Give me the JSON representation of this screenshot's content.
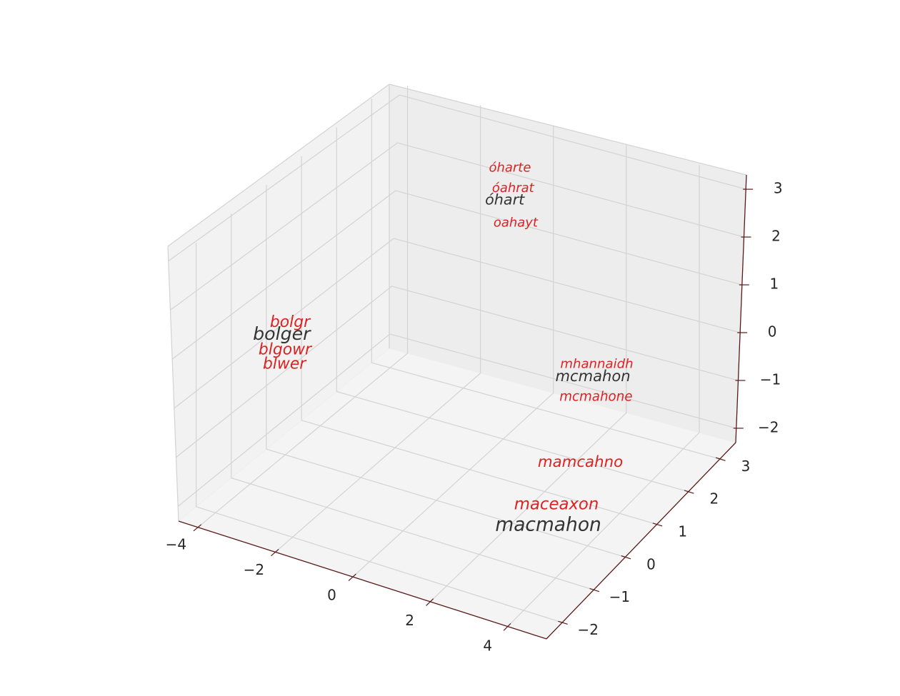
{
  "chart_data": {
    "type": "scatter",
    "projection": "3d",
    "title": "",
    "xlabel": "",
    "ylabel": "",
    "zlabel": "",
    "grid": true,
    "xlim": [
      -4.5,
      5
    ],
    "ylim": [
      -2.5,
      3.5
    ],
    "zlim": [
      -2.3,
      3.3
    ],
    "xticks": [
      "−4",
      "−2",
      "0",
      "2",
      "4"
    ],
    "yticks": [
      "−2",
      "−1",
      "0",
      "1",
      "2",
      "3"
    ],
    "zticks": [
      "−2",
      "−1",
      "0",
      "1",
      "2",
      "3"
    ],
    "colors": {
      "target": "#333333",
      "variant": "#dd2222"
    },
    "labels": [
      {
        "text": "óharte",
        "group": "variant",
        "x": -1.0,
        "y": 2.8,
        "z": 2.8
      },
      {
        "text": "óahrat",
        "group": "variant",
        "x": -0.9,
        "y": 2.8,
        "z": 2.4
      },
      {
        "text": "óhart",
        "group": "target",
        "x": -1.1,
        "y": 2.8,
        "z": 2.1
      },
      {
        "text": "oahayt",
        "group": "variant",
        "x": -0.8,
        "y": 2.8,
        "z": 1.7
      },
      {
        "text": "mcmahon",
        "group": "target",
        "x": 1.5,
        "y": 2.6,
        "z": -0.8
      },
      {
        "text": "mcmahone",
        "group": "variant",
        "x": 1.6,
        "y": 2.6,
        "z": -1.2
      },
      {
        "text": "mhannaidh",
        "group": "variant",
        "x": 1.5,
        "y": 2.7,
        "z": -0.6
      },
      {
        "text": "bolgr",
        "group": "variant",
        "x": -4.2,
        "y": 0.2,
        "z": 0.3
      },
      {
        "text": "bolger",
        "group": "target",
        "x": -4.4,
        "y": 0.2,
        "z": 0.0
      },
      {
        "text": "blgowr",
        "group": "variant",
        "x": -4.3,
        "y": 0.2,
        "z": -0.3
      },
      {
        "text": "blwer",
        "group": "variant",
        "x": -4.3,
        "y": 0.2,
        "z": -0.6
      },
      {
        "text": "mamcahno",
        "group": "variant",
        "x": 3.0,
        "y": 0.6,
        "z": -1.0
      },
      {
        "text": "maceaxon",
        "group": "variant",
        "x": 3.3,
        "y": -0.4,
        "z": -1.2
      },
      {
        "text": "macmahon",
        "group": "target",
        "x": 3.2,
        "y": -0.5,
        "z": -1.6
      }
    ]
  }
}
